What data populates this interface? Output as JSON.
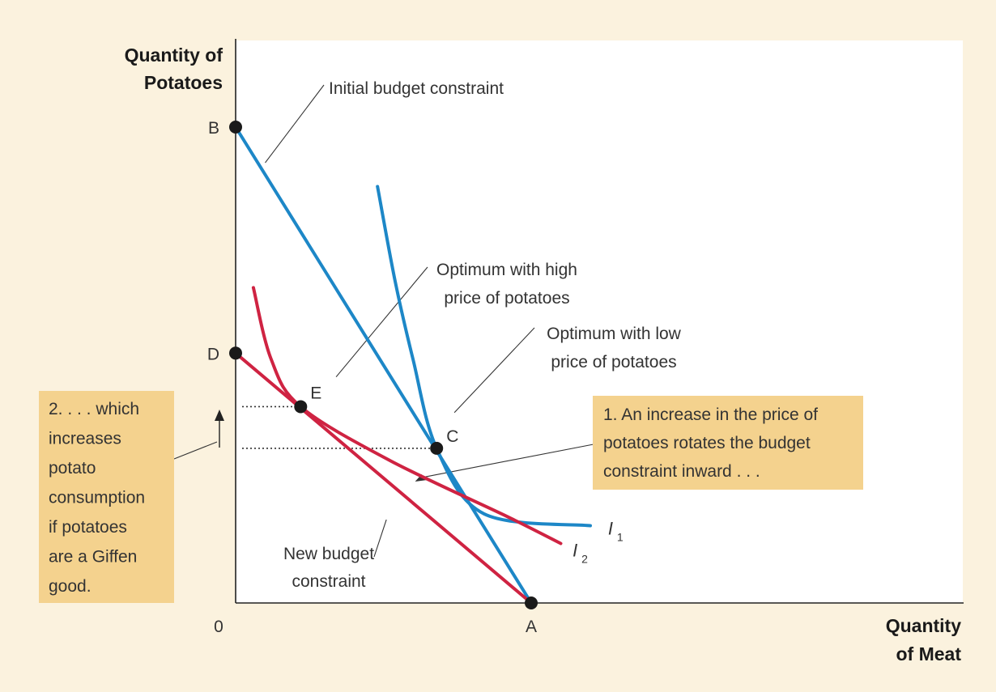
{
  "chart_data": {
    "type": "line",
    "axes": {
      "y_title": [
        "Quantity of",
        "Potatoes"
      ],
      "x_title": [
        "Quantity",
        "of Meat"
      ],
      "origin_label": "0"
    },
    "points": [
      {
        "label": "B",
        "x": 0,
        "y": 8.0
      },
      {
        "label": "D",
        "x": 0,
        "y": 4.2
      },
      {
        "label": "E",
        "x": 1.1,
        "y": 3.3
      },
      {
        "label": "C",
        "x": 3.4,
        "y": 2.6
      },
      {
        "label": "A",
        "x": 5.0,
        "y": 0
      }
    ],
    "series": [
      {
        "name": "Initial budget constraint",
        "kind": "budget",
        "color": "#1d87c7",
        "points": [
          [
            0,
            8.0
          ],
          [
            5.0,
            0
          ]
        ]
      },
      {
        "name": "New budget constraint",
        "kind": "budget",
        "color": "#cf2342",
        "points": [
          [
            0,
            4.2
          ],
          [
            5.0,
            0
          ]
        ]
      },
      {
        "name": "I1",
        "kind": "indifference",
        "color": "#1d87c7",
        "points": [
          [
            2.4,
            7.0
          ],
          [
            2.7,
            5.4
          ],
          [
            3.0,
            4.1
          ],
          [
            3.4,
            2.6
          ],
          [
            4.2,
            1.5
          ],
          [
            6.0,
            1.3
          ]
        ]
      },
      {
        "name": "I2",
        "kind": "indifference",
        "color": "#cf2342",
        "points": [
          [
            0.3,
            5.3
          ],
          [
            0.6,
            4.1
          ],
          [
            1.1,
            3.3
          ],
          [
            2.6,
            2.4
          ],
          [
            4.6,
            1.45
          ],
          [
            5.5,
            1.0
          ]
        ]
      }
    ],
    "curve_labels": [
      {
        "main": "I",
        "sub": "1",
        "x": 6.3,
        "y": 1.15
      },
      {
        "main": "I",
        "sub": "2",
        "x": 5.7,
        "y": 0.78
      }
    ],
    "annotations": [
      {
        "lines": [
          "Initial budget constraint"
        ]
      },
      {
        "lines": [
          "Optimum with high",
          "price of potatoes"
        ]
      },
      {
        "lines": [
          "Optimum with low",
          "price of potatoes"
        ]
      },
      {
        "lines": [
          "New budget",
          "constraint"
        ]
      }
    ],
    "boxes": [
      {
        "lines": [
          "1. An increase in the price of",
          "potatoes rotates the budget",
          "constraint inward . . ."
        ]
      },
      {
        "lines": [
          "2. . . . which",
          "increases",
          "potato",
          "consumption",
          "if potatoes",
          "are a Giffen",
          "good."
        ]
      }
    ],
    "xlim": [
      0,
      12.3
    ],
    "ylim": [
      0,
      9.35
    ]
  },
  "colors": {
    "background": "#fbf2de",
    "plot_bg": "#ffffff",
    "blue": "#1d87c7",
    "red": "#cf2342",
    "box": "#f4d28e",
    "point": "#1a1a1a"
  }
}
